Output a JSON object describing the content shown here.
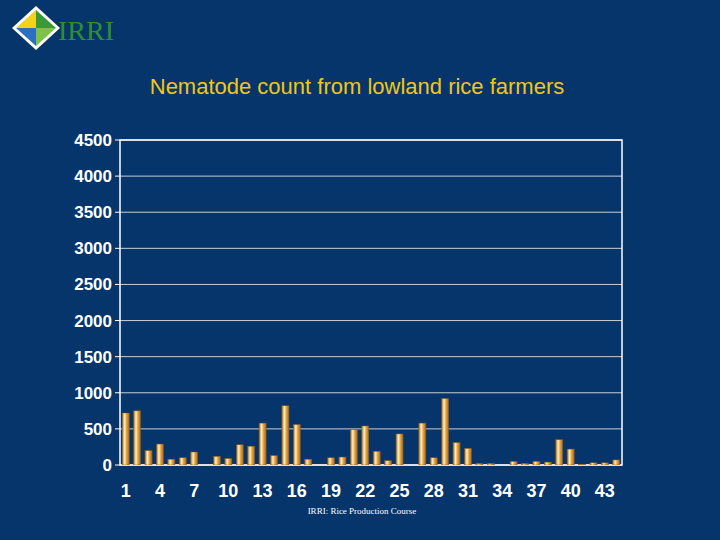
{
  "logo": "IRRI",
  "footer": "IRRI: Rice Production Course",
  "chart_data": {
    "type": "bar",
    "title": "Nematode count from lowland rice farmers",
    "categories": [
      "1",
      null,
      null,
      "4",
      null,
      null,
      "7",
      null,
      null,
      "10",
      null,
      null,
      "13",
      null,
      null,
      "16",
      null,
      null,
      "19",
      null,
      null,
      "22",
      null,
      null,
      "25",
      null,
      null,
      "28",
      null,
      null,
      "31",
      null,
      null,
      "34",
      null,
      null,
      "37",
      null,
      null,
      "40",
      null,
      null,
      "43",
      null
    ],
    "values": [
      720,
      750,
      200,
      290,
      80,
      100,
      180,
      0,
      120,
      90,
      280,
      260,
      580,
      130,
      820,
      560,
      80,
      0,
      100,
      110,
      490,
      540,
      190,
      60,
      430,
      0,
      580,
      100,
      920,
      310,
      230,
      20,
      20,
      0,
      50,
      20,
      50,
      40,
      350,
      220,
      10,
      30,
      30,
      70
    ],
    "color": "#e9a847",
    "ylim": [
      0,
      4500
    ],
    "yticks": [
      0,
      500,
      1000,
      1500,
      2000,
      2500,
      3000,
      3500,
      4000,
      4500
    ],
    "grid": true
  }
}
